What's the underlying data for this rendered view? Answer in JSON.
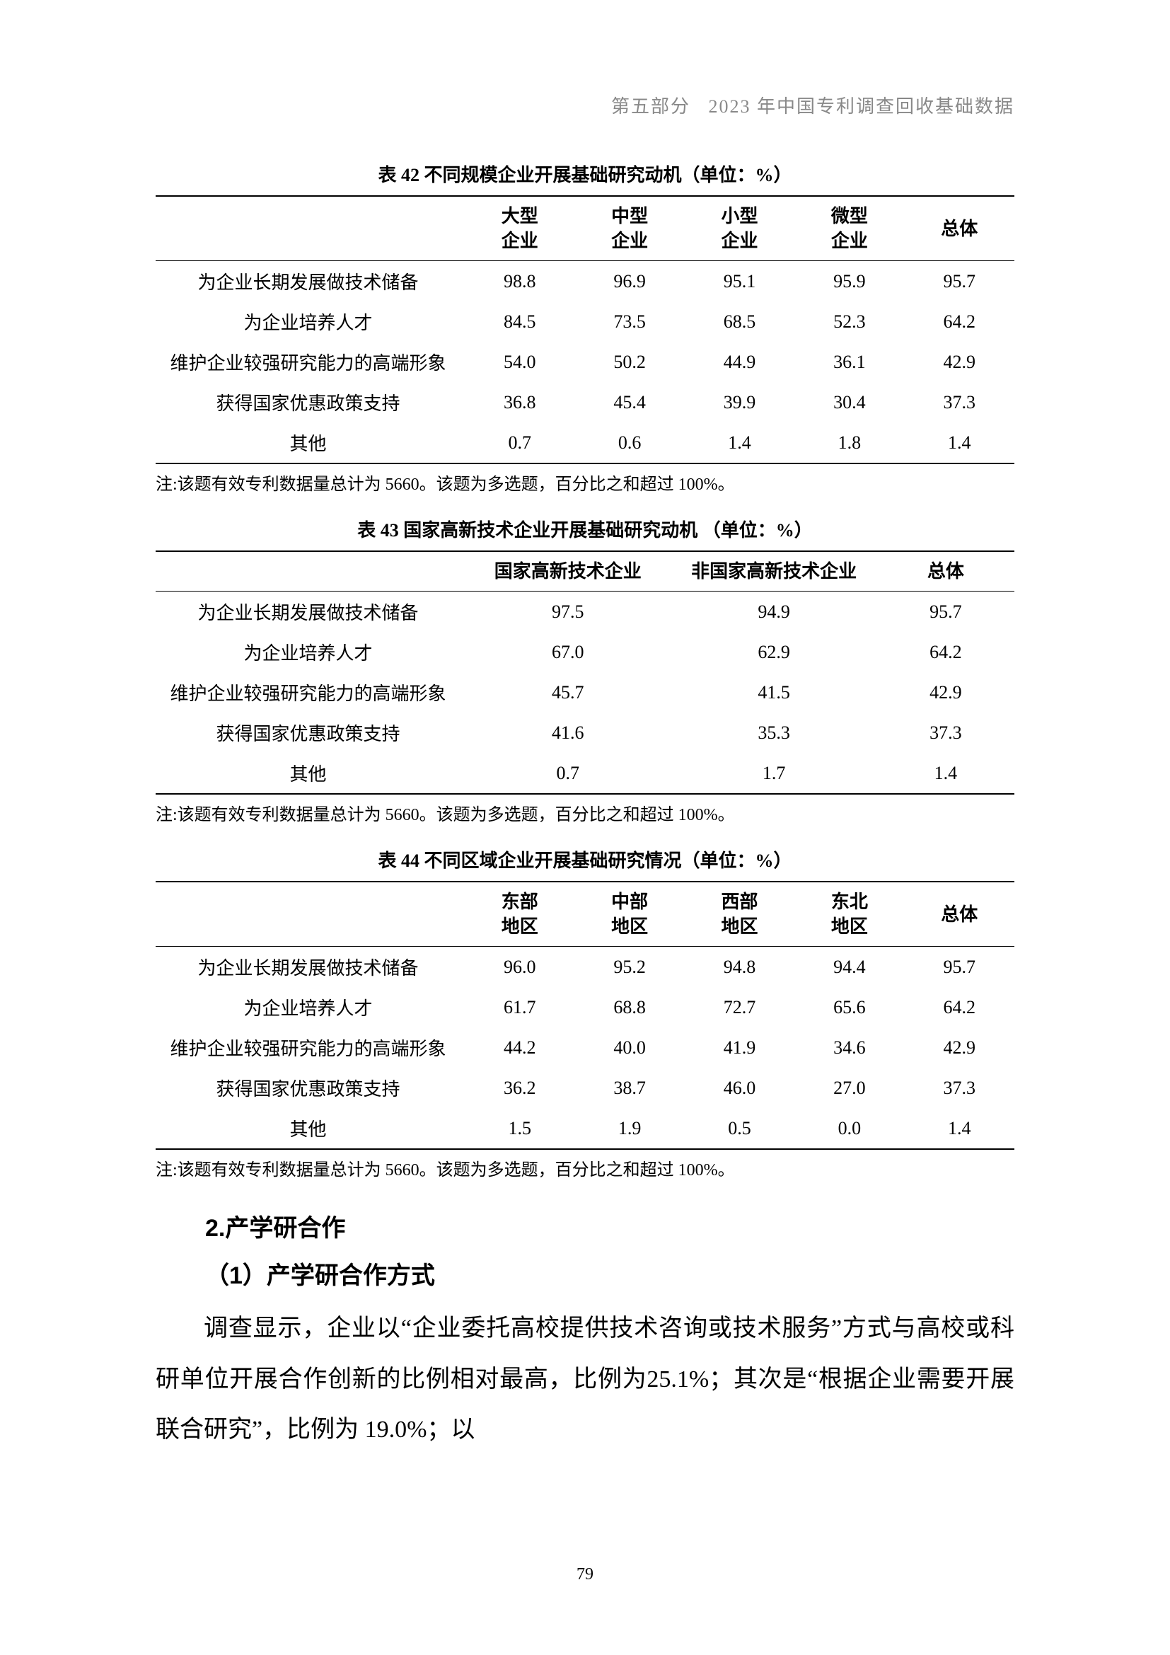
{
  "header": {
    "part": "第五部分",
    "title": "2023 年中国专利调查回收基础数据"
  },
  "tables": {
    "t42": {
      "title": "表 42  不同规模企业开展基础研究动机（单位：%）",
      "columns": [
        "大型\n企业",
        "中型\n企业",
        "小型\n企业",
        "微型\n企业",
        "总体"
      ],
      "rows": [
        {
          "label": "为企业长期发展做技术储备",
          "vals": [
            "98.8",
            "96.9",
            "95.1",
            "95.9",
            "95.7"
          ]
        },
        {
          "label": "为企业培养人才",
          "vals": [
            "84.5",
            "73.5",
            "68.5",
            "52.3",
            "64.2"
          ]
        },
        {
          "label": "维护企业较强研究能力的高端形象",
          "vals": [
            "54.0",
            "50.2",
            "44.9",
            "36.1",
            "42.9"
          ]
        },
        {
          "label": "获得国家优惠政策支持",
          "vals": [
            "36.8",
            "45.4",
            "39.9",
            "30.4",
            "37.3"
          ]
        },
        {
          "label": "其他",
          "vals": [
            "0.7",
            "0.6",
            "1.4",
            "1.8",
            "1.4"
          ]
        }
      ],
      "note": "注:该题有效专利数据量总计为 5660。该题为多选题，百分比之和超过 100%。"
    },
    "t43": {
      "title": "表 43  国家高新技术企业开展基础研究动机 （单位：%）",
      "columns": [
        "国家高新技术企业",
        "非国家高新技术企业",
        "总体"
      ],
      "rows": [
        {
          "label": "为企业长期发展做技术储备",
          "vals": [
            "97.5",
            "94.9",
            "95.7"
          ]
        },
        {
          "label": "为企业培养人才",
          "vals": [
            "67.0",
            "62.9",
            "64.2"
          ]
        },
        {
          "label": "维护企业较强研究能力的高端形象",
          "vals": [
            "45.7",
            "41.5",
            "42.9"
          ]
        },
        {
          "label": "获得国家优惠政策支持",
          "vals": [
            "41.6",
            "35.3",
            "37.3"
          ]
        },
        {
          "label": "其他",
          "vals": [
            "0.7",
            "1.7",
            "1.4"
          ]
        }
      ],
      "note": "注:该题有效专利数据量总计为 5660。该题为多选题，百分比之和超过 100%。"
    },
    "t44": {
      "title": "表 44  不同区域企业开展基础研究情况（单位：%）",
      "columns": [
        "东部\n地区",
        "中部\n地区",
        "西部\n地区",
        "东北\n地区",
        "总体"
      ],
      "rows": [
        {
          "label": "为企业长期发展做技术储备",
          "vals": [
            "96.0",
            "95.2",
            "94.8",
            "94.4",
            "95.7"
          ]
        },
        {
          "label": "为企业培养人才",
          "vals": [
            "61.7",
            "68.8",
            "72.7",
            "65.6",
            "64.2"
          ]
        },
        {
          "label": "维护企业较强研究能力的高端形象",
          "vals": [
            "44.2",
            "40.0",
            "41.9",
            "34.6",
            "42.9"
          ]
        },
        {
          "label": "获得国家优惠政策支持",
          "vals": [
            "36.2",
            "38.7",
            "46.0",
            "27.0",
            "37.3"
          ]
        },
        {
          "label": "其他",
          "vals": [
            "1.5",
            "1.9",
            "0.5",
            "0.0",
            "1.4"
          ]
        }
      ],
      "note": "注:该题有效专利数据量总计为 5660。该题为多选题，百分比之和超过 100%。"
    }
  },
  "section": {
    "heading": "2.产学研合作",
    "subheading": "（1）产学研合作方式",
    "paragraph": "调查显示，企业以“企业委托高校提供技术咨询或技术服务”方式与高校或科研单位开展合作创新的比例相对最高，比例为25.1%；其次是“根据企业需要开展联合研究”，比例为 19.0%；以"
  },
  "pageNumber": "79",
  "style": {
    "rule_color": "#000000",
    "header_color": "#888888",
    "fontsize_body": 34,
    "fontsize_table": 26,
    "fontsize_note": 24
  }
}
